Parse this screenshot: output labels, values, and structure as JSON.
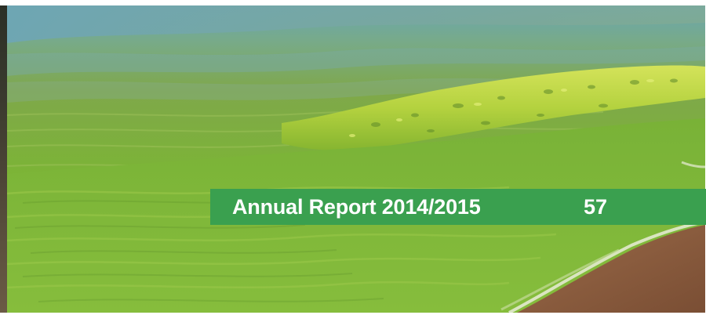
{
  "banner": {
    "title": "Annual Report 2014/2015",
    "page_number": "57"
  },
  "photo": {
    "subject": "algae-covered water at shoreline",
    "colors": {
      "water_blue": "#5f9aa8",
      "algae_green": "#7fb83a",
      "algae_bright": "#b8d94a",
      "sand": "#8a5a3c",
      "banner_green": "#3aa04f"
    }
  }
}
